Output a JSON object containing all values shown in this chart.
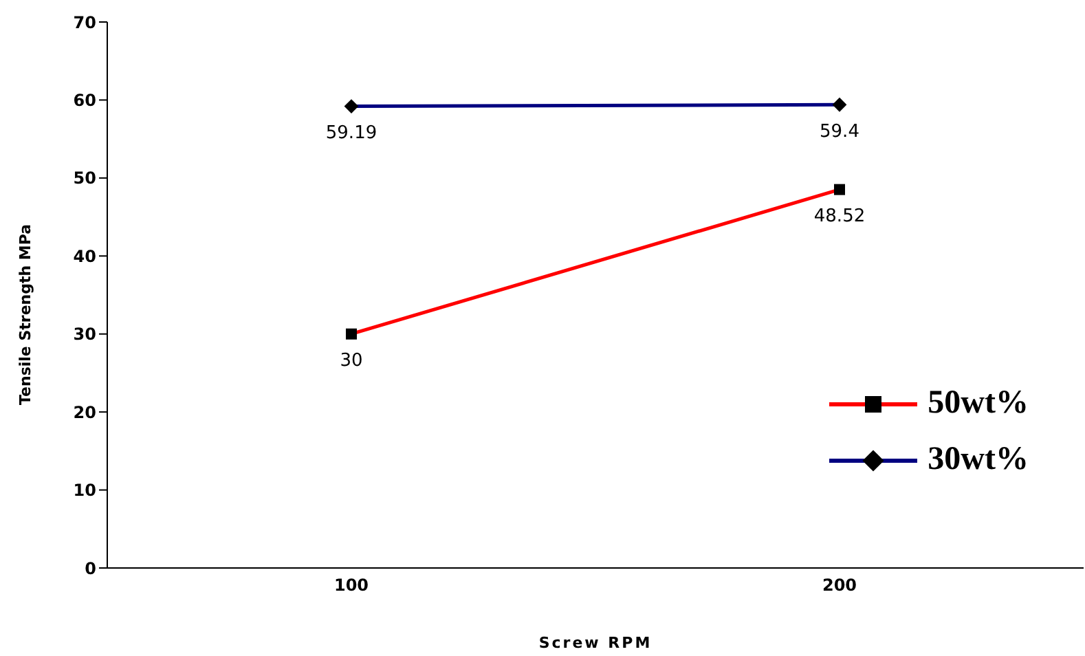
{
  "chart_data": {
    "type": "line",
    "xlabel": "Screw RPM",
    "ylabel": "Tensile Strength MPa",
    "categories": [
      "100",
      "200"
    ],
    "series": [
      {
        "name": "50wt%",
        "color": "#ff0000",
        "marker": "square",
        "values": [
          30,
          48.52
        ]
      },
      {
        "name": "30wt%",
        "color": "#000080",
        "marker": "diamond",
        "values": [
          59.19,
          59.4
        ]
      }
    ],
    "ylim": [
      0,
      70
    ],
    "yticks": [
      0,
      10,
      20,
      30,
      40,
      50,
      60,
      70
    ],
    "grid": false,
    "legend": "bottom right",
    "data_labels": true
  }
}
